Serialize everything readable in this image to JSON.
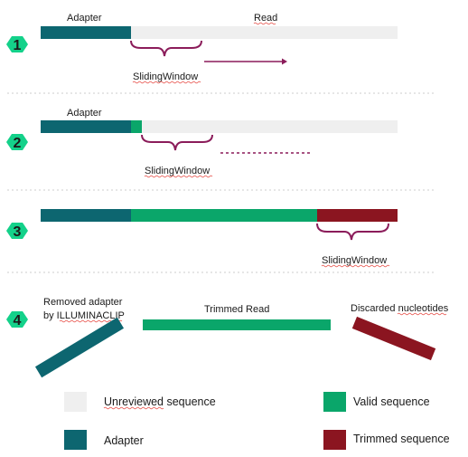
{
  "colors": {
    "unreviewed": "#efefef",
    "adapter": "#0d6670",
    "valid": "#0aa66a",
    "trimmed": "#8b1520",
    "badge": "#14d18a",
    "bracket": "#8b1c5a"
  },
  "steps": [
    {
      "number": "1",
      "adapter_label": "Adapter",
      "read_label": "Read",
      "window_label": "SlidingWindow"
    },
    {
      "number": "2",
      "adapter_label": "Adapter",
      "window_label": "SlidingWindow"
    },
    {
      "number": "3",
      "window_label": "SlidingWindow"
    },
    {
      "number": "4",
      "removed_label_line1": "Removed adapter",
      "removed_label_line2": "by ILLUMINACLIP",
      "trimmed_read_label": "Trimmed Read",
      "discarded_label": "Discarded nucleotides"
    }
  ],
  "legend": {
    "unreviewed": "Unreviewed sequence",
    "valid": "Valid sequence",
    "adapter": "Adapter",
    "trimmed": "Trimmed sequence"
  }
}
